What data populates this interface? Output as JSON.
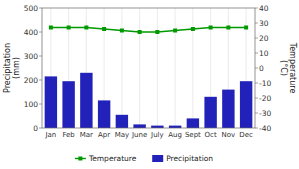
{
  "chart_data": {
    "type": "bar",
    "categories": [
      "Jan",
      "Feb",
      "Mar",
      "Apr",
      "May",
      "June",
      "July",
      "Aug",
      "Sept",
      "Oct",
      "Nov",
      "Dec"
    ],
    "series": [
      {
        "name": "Precipitation",
        "type": "bar",
        "color": "#2222bb",
        "values": [
          215,
          195,
          230,
          115,
          55,
          15,
          10,
          10,
          40,
          130,
          160,
          195
        ]
      },
      {
        "name": "Temperature",
        "type": "line",
        "color": "#009900",
        "marker": "square",
        "axis": "y2",
        "values": [
          27,
          27,
          27,
          26,
          25,
          24,
          24,
          25,
          26,
          27,
          27,
          27
        ]
      }
    ],
    "ylabel": "Precipitation\n(mm)",
    "y2label": "Temperature\n(°C)",
    "ylim": [
      0,
      500
    ],
    "yticks": [
      0,
      100,
      200,
      300,
      400,
      500
    ],
    "y2lim": [
      -40,
      40
    ],
    "y2ticks": [
      -40,
      -30,
      -20,
      -10,
      0,
      10,
      20,
      30,
      40
    ],
    "grid": true,
    "legend": "bottom"
  }
}
